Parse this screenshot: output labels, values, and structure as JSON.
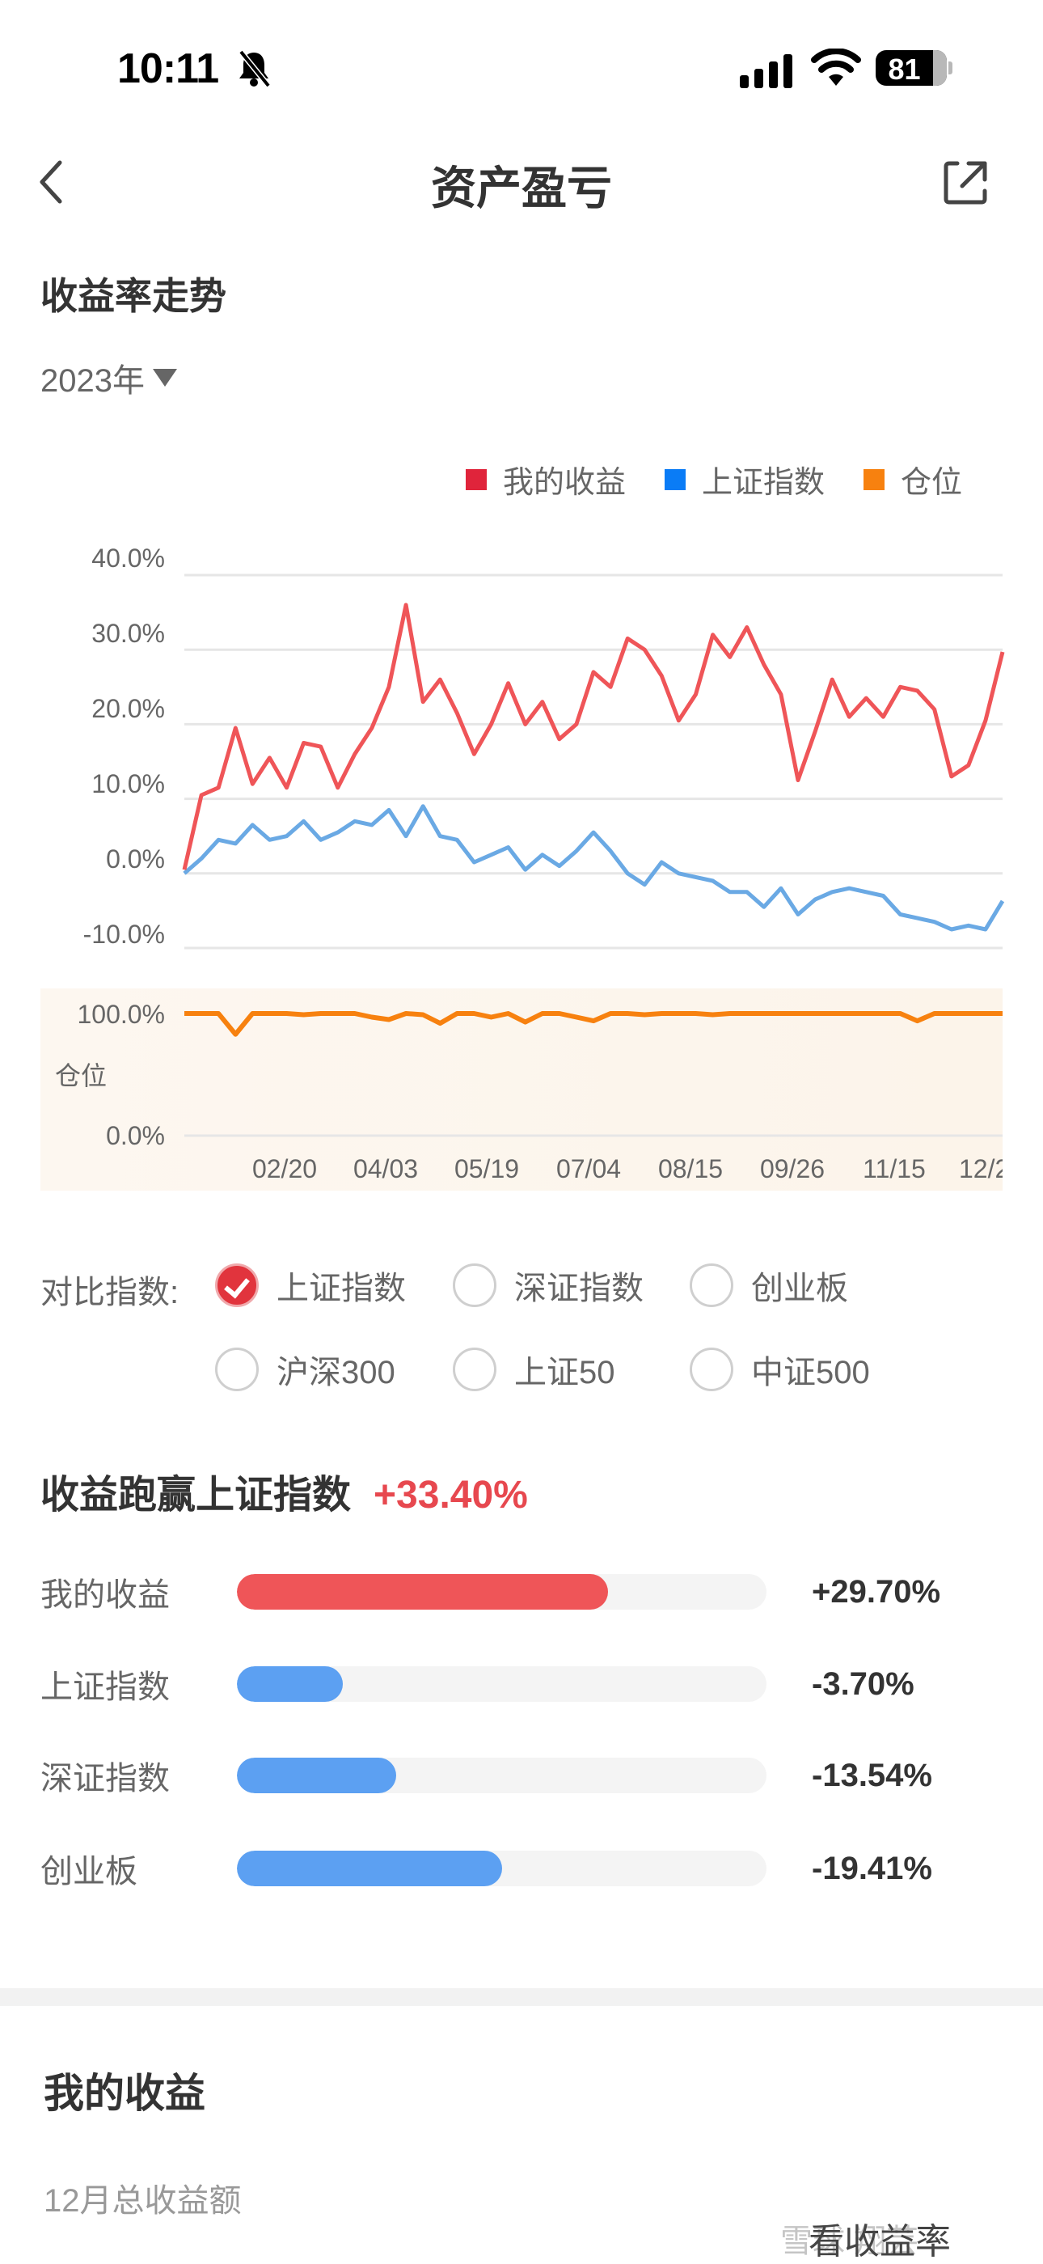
{
  "status_bar": {
    "time": "10:11",
    "silent_icon": "bell-slash-icon",
    "signal_icon": "cellular-signal-icon",
    "wifi_icon": "wifi-icon",
    "battery_level": "81"
  },
  "nav": {
    "back_icon": "chevron-left-icon",
    "title": "资产盈亏",
    "share_icon": "share-external-icon"
  },
  "trend": {
    "title": "收益率走势",
    "year_selector": "2023年",
    "legend": [
      {
        "label": "我的收益",
        "color": "#e0243b"
      },
      {
        "label": "上证指数",
        "color": "#0a7cf6"
      },
      {
        "label": "仓位",
        "color": "#f7810f"
      }
    ],
    "position_axis_label": "仓位"
  },
  "chart_data": [
    {
      "type": "line",
      "title": "收益率走势",
      "ylabel": "",
      "xlabel": "",
      "ylim": [
        -10,
        40
      ],
      "yticks": [
        "40.0%",
        "30.0%",
        "20.0%",
        "10.0%",
        "0.0%",
        "-10.0%"
      ],
      "xticks": [
        "02/20",
        "04/03",
        "05/19",
        "07/04",
        "08/15",
        "09/26",
        "11/15",
        "12/2"
      ],
      "grid": true,
      "legend_position": "top-right",
      "x": [
        "01/03",
        "01/10",
        "01/17",
        "02/01",
        "02/08",
        "02/15",
        "02/20",
        "02/27",
        "03/06",
        "03/13",
        "03/20",
        "03/27",
        "04/03",
        "04/10",
        "04/17",
        "04/24",
        "05/04",
        "05/11",
        "05/19",
        "05/26",
        "06/02",
        "06/09",
        "06/16",
        "06/26",
        "07/04",
        "07/11",
        "07/18",
        "07/25",
        "08/01",
        "08/08",
        "08/15",
        "08/22",
        "08/29",
        "09/05",
        "09/12",
        "09/19",
        "09/26",
        "10/10",
        "10/17",
        "10/24",
        "10/31",
        "11/07",
        "11/15",
        "11/22",
        "11/29",
        "12/06",
        "12/13",
        "12/20",
        "12/29"
      ],
      "series": [
        {
          "name": "我的收益",
          "color": "#ef5558",
          "values": [
            0.5,
            10.5,
            11.5,
            19.5,
            12.0,
            15.5,
            11.5,
            17.5,
            17.0,
            11.5,
            16.0,
            19.5,
            25.0,
            36.0,
            23.0,
            26.0,
            21.5,
            16.0,
            20.0,
            25.5,
            20.0,
            23.0,
            18.0,
            20.0,
            27.0,
            25.0,
            31.5,
            30.0,
            26.5,
            20.5,
            24.0,
            32.0,
            29.0,
            33.0,
            28.0,
            24.0,
            12.5,
            19.0,
            26.0,
            21.0,
            23.5,
            21.0,
            25.0,
            24.5,
            22.0,
            13.0,
            14.5,
            20.5,
            29.7
          ]
        },
        {
          "name": "上证指数",
          "color": "#6aa9e4",
          "values": [
            0.0,
            2.0,
            4.5,
            4.0,
            6.5,
            4.5,
            5.0,
            7.0,
            4.5,
            5.5,
            7.0,
            6.5,
            8.5,
            5.0,
            9.0,
            5.0,
            4.5,
            1.5,
            2.5,
            3.5,
            0.5,
            2.5,
            1.0,
            3.0,
            5.5,
            3.0,
            0.0,
            -1.5,
            1.5,
            0.0,
            -0.5,
            -1.0,
            -2.5,
            -2.5,
            -4.5,
            -2.0,
            -5.5,
            -3.5,
            -2.5,
            -2.0,
            -2.5,
            -3.0,
            -5.5,
            -6.0,
            -6.5,
            -7.5,
            -7.0,
            -7.5,
            -3.7
          ]
        }
      ]
    },
    {
      "type": "line",
      "title": "仓位",
      "ylim": [
        0,
        100
      ],
      "yticks": [
        "100.0%",
        "0.0%"
      ],
      "series": [
        {
          "name": "仓位",
          "color": "#f7810f",
          "values": [
            100,
            100,
            100,
            83,
            100,
            100,
            100,
            99,
            100,
            100,
            100,
            97,
            95,
            100,
            99,
            92,
            100,
            100,
            97,
            100,
            93,
            100,
            100,
            97,
            94,
            100,
            100,
            99,
            100,
            100,
            100,
            99,
            100,
            100,
            100,
            100,
            100,
            100,
            100,
            100,
            100,
            100,
            100,
            94,
            100,
            100,
            100,
            100,
            100
          ]
        }
      ]
    }
  ],
  "compare": {
    "label": "对比指数:",
    "options": [
      {
        "label": "上证指数",
        "checked": true
      },
      {
        "label": "深证指数",
        "checked": false
      },
      {
        "label": "创业板",
        "checked": false
      },
      {
        "label": "沪深300",
        "checked": false
      },
      {
        "label": "上证50",
        "checked": false
      },
      {
        "label": "中证500",
        "checked": false
      }
    ]
  },
  "beat": {
    "title": "收益跑赢上证指数",
    "value": "+33.40%",
    "rows": [
      {
        "label": "我的收益",
        "value": "+29.70%",
        "fill_pct": 70,
        "color": "#ef5558"
      },
      {
        "label": "上证指数",
        "value": "-3.70%",
        "fill_pct": 20,
        "color": "#5ca0f2"
      },
      {
        "label": "深证指数",
        "value": "-13.54%",
        "fill_pct": 30,
        "color": "#5ca0f2"
      },
      {
        "label": "创业板",
        "value": "-19.41%",
        "fill_pct": 50,
        "color": "#5ca0f2"
      }
    ]
  },
  "my_income": {
    "title": "我的收益",
    "month_total_label": "12月总收益额",
    "view_rate_link": "看收益率",
    "watermark": "雪球 翔芸"
  }
}
